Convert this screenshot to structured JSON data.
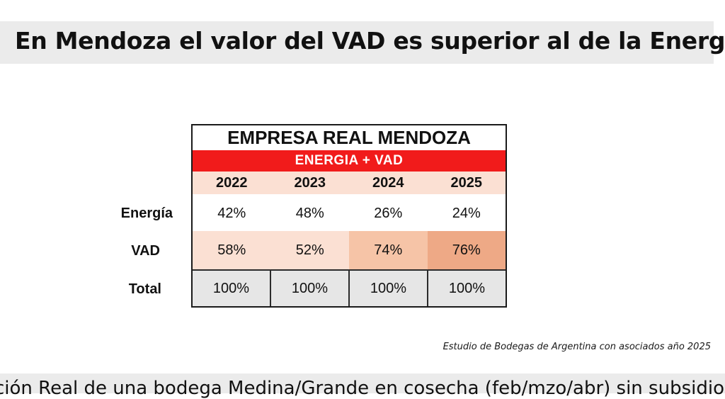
{
  "header": {
    "title": "En Mendoza el valor del VAD es superior al de la Energía"
  },
  "table": {
    "title": "EMPRESA REAL MENDOZA",
    "subtitle": "ENERGIA + VAD",
    "years": [
      "2022",
      "2023",
      "2024",
      "2025"
    ],
    "rows": [
      {
        "label": "Energía",
        "values": [
          "42%",
          "48%",
          "26%",
          "24%"
        ]
      },
      {
        "label": "VAD",
        "values": [
          "58%",
          "52%",
          "74%",
          "76%"
        ]
      },
      {
        "label": "Total",
        "values": [
          "100%",
          "100%",
          "100%",
          "100%"
        ]
      }
    ],
    "colors": {
      "subtitle_bg": "#f11b1b",
      "year_row_bg": "#fbe0d3",
      "vad_light": "#fbe0d3",
      "vad_medium": "#f6c4a7",
      "vad_dark": "#eea986",
      "total_bg": "#e6e6e6"
    }
  },
  "footer": {
    "source": "Estudio de Bodegas de Argentina con asociados año 2025",
    "bottom_caption": "ción Real de una bodega Medina/Grande en cosecha (feb/mzo/abr) sin subsidios"
  }
}
